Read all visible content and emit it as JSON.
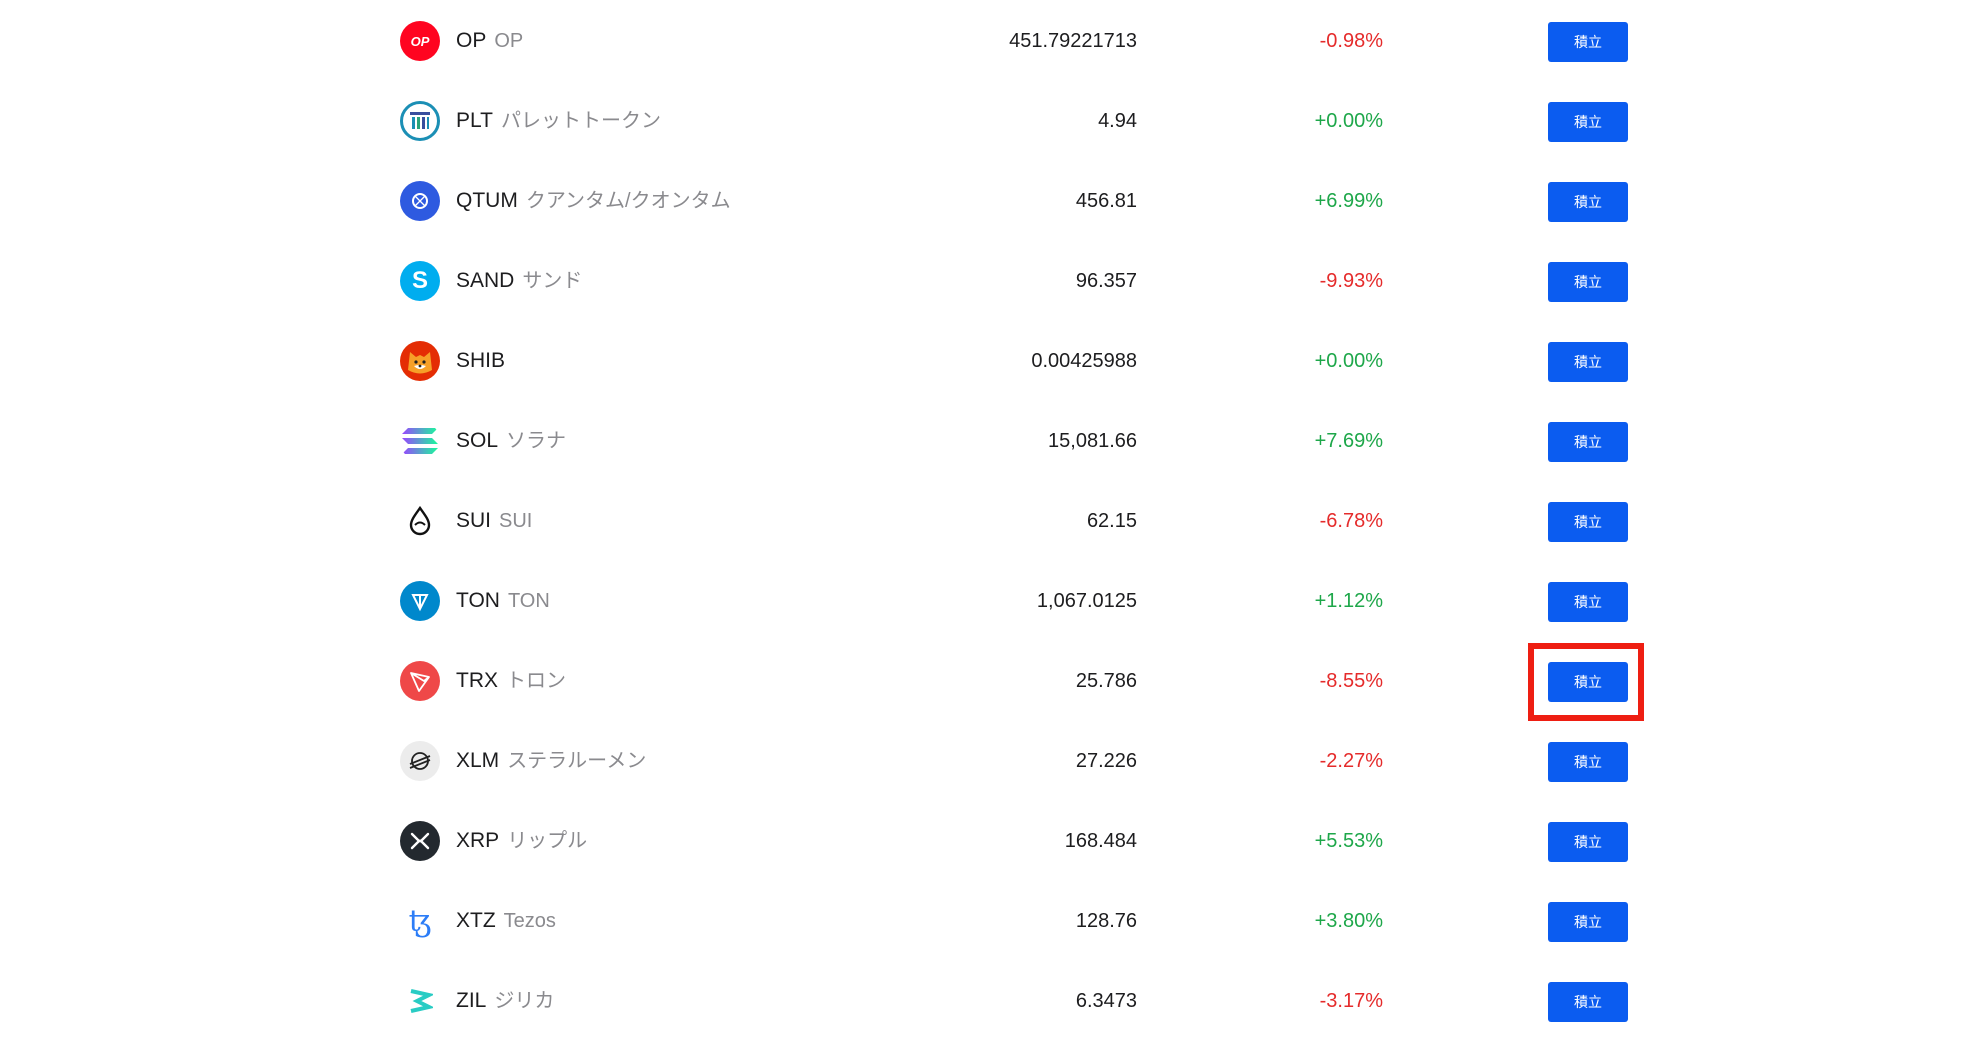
{
  "button_label": "積立",
  "colors": {
    "up": "#1ea74a",
    "down": "#e52b2b",
    "button": "#0b5cf0",
    "highlight": "#ee1e12"
  },
  "highlighted_row": "TRX",
  "coins": [
    {
      "symbol": "OP",
      "name": "OP",
      "price": "451.79221713",
      "change": "-0.98%",
      "direction": "down",
      "icon": "op-icon"
    },
    {
      "symbol": "PLT",
      "name": "パレットトークン",
      "price": "4.94",
      "change": "+0.00%",
      "direction": "up",
      "icon": "plt-icon"
    },
    {
      "symbol": "QTUM",
      "name": "クアンタム/クオンタム",
      "price": "456.81",
      "change": "+6.99%",
      "direction": "up",
      "icon": "qtum-icon"
    },
    {
      "symbol": "SAND",
      "name": "サンド",
      "price": "96.357",
      "change": "-9.93%",
      "direction": "down",
      "icon": "sand-icon"
    },
    {
      "symbol": "SHIB",
      "name": "",
      "price": "0.00425988",
      "change": "+0.00%",
      "direction": "up",
      "icon": "shib-icon"
    },
    {
      "symbol": "SOL",
      "name": "ソラナ",
      "price": "15,081.66",
      "change": "+7.69%",
      "direction": "up",
      "icon": "sol-icon"
    },
    {
      "symbol": "SUI",
      "name": "SUI",
      "price": "62.15",
      "change": "-6.78%",
      "direction": "down",
      "icon": "sui-icon"
    },
    {
      "symbol": "TON",
      "name": "TON",
      "price": "1,067.0125",
      "change": "+1.12%",
      "direction": "up",
      "icon": "ton-icon"
    },
    {
      "symbol": "TRX",
      "name": "トロン",
      "price": "25.786",
      "change": "-8.55%",
      "direction": "down",
      "icon": "trx-icon"
    },
    {
      "symbol": "XLM",
      "name": "ステラルーメン",
      "price": "27.226",
      "change": "-2.27%",
      "direction": "down",
      "icon": "xlm-icon"
    },
    {
      "symbol": "XRP",
      "name": "リップル",
      "price": "168.484",
      "change": "+5.53%",
      "direction": "up",
      "icon": "xrp-icon"
    },
    {
      "symbol": "XTZ",
      "name": "Tezos",
      "price": "128.76",
      "change": "+3.80%",
      "direction": "up",
      "icon": "xtz-icon"
    },
    {
      "symbol": "ZIL",
      "name": "ジリカ",
      "price": "6.3473",
      "change": "-3.17%",
      "direction": "down",
      "icon": "zil-icon"
    }
  ]
}
